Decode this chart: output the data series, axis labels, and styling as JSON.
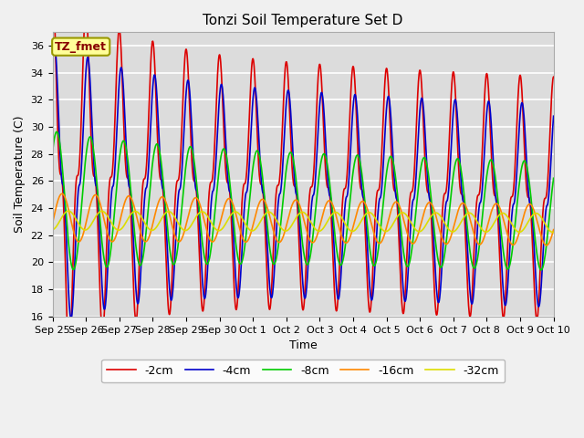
{
  "title": "Tonzi Soil Temperature Set D",
  "xlabel": "Time",
  "ylabel": "Soil Temperature (C)",
  "legend_label": "TZ_fmet",
  "legend_box_color": "#ffff99",
  "legend_box_edge": "#999900",
  "ylim": [
    16,
    37
  ],
  "tick_labels": [
    "Sep 25",
    "Sep 26",
    "Sep 27",
    "Sep 28",
    "Sep 29",
    "Sep 30",
    "Oct 1",
    "Oct 2",
    "Oct 3",
    "Oct 4",
    "Oct 5",
    "Oct 6",
    "Oct 7",
    "Oct 8",
    "Oct 9",
    "Oct 10"
  ],
  "series_colors": [
    "#dd0000",
    "#0000cc",
    "#00cc00",
    "#ff8800",
    "#dddd00"
  ],
  "series_labels": [
    "-2cm",
    "-4cm",
    "-8cm",
    "-16cm",
    "-32cm"
  ],
  "background_color": "#dcdcdc",
  "fig_background": "#f0f0f0",
  "grid_color": "#ffffff",
  "title_fontsize": 11,
  "axis_fontsize": 9,
  "tick_fontsize": 8,
  "legend_fontsize": 9,
  "yticks": [
    16,
    18,
    20,
    22,
    24,
    26,
    28,
    30,
    32,
    34,
    36
  ]
}
